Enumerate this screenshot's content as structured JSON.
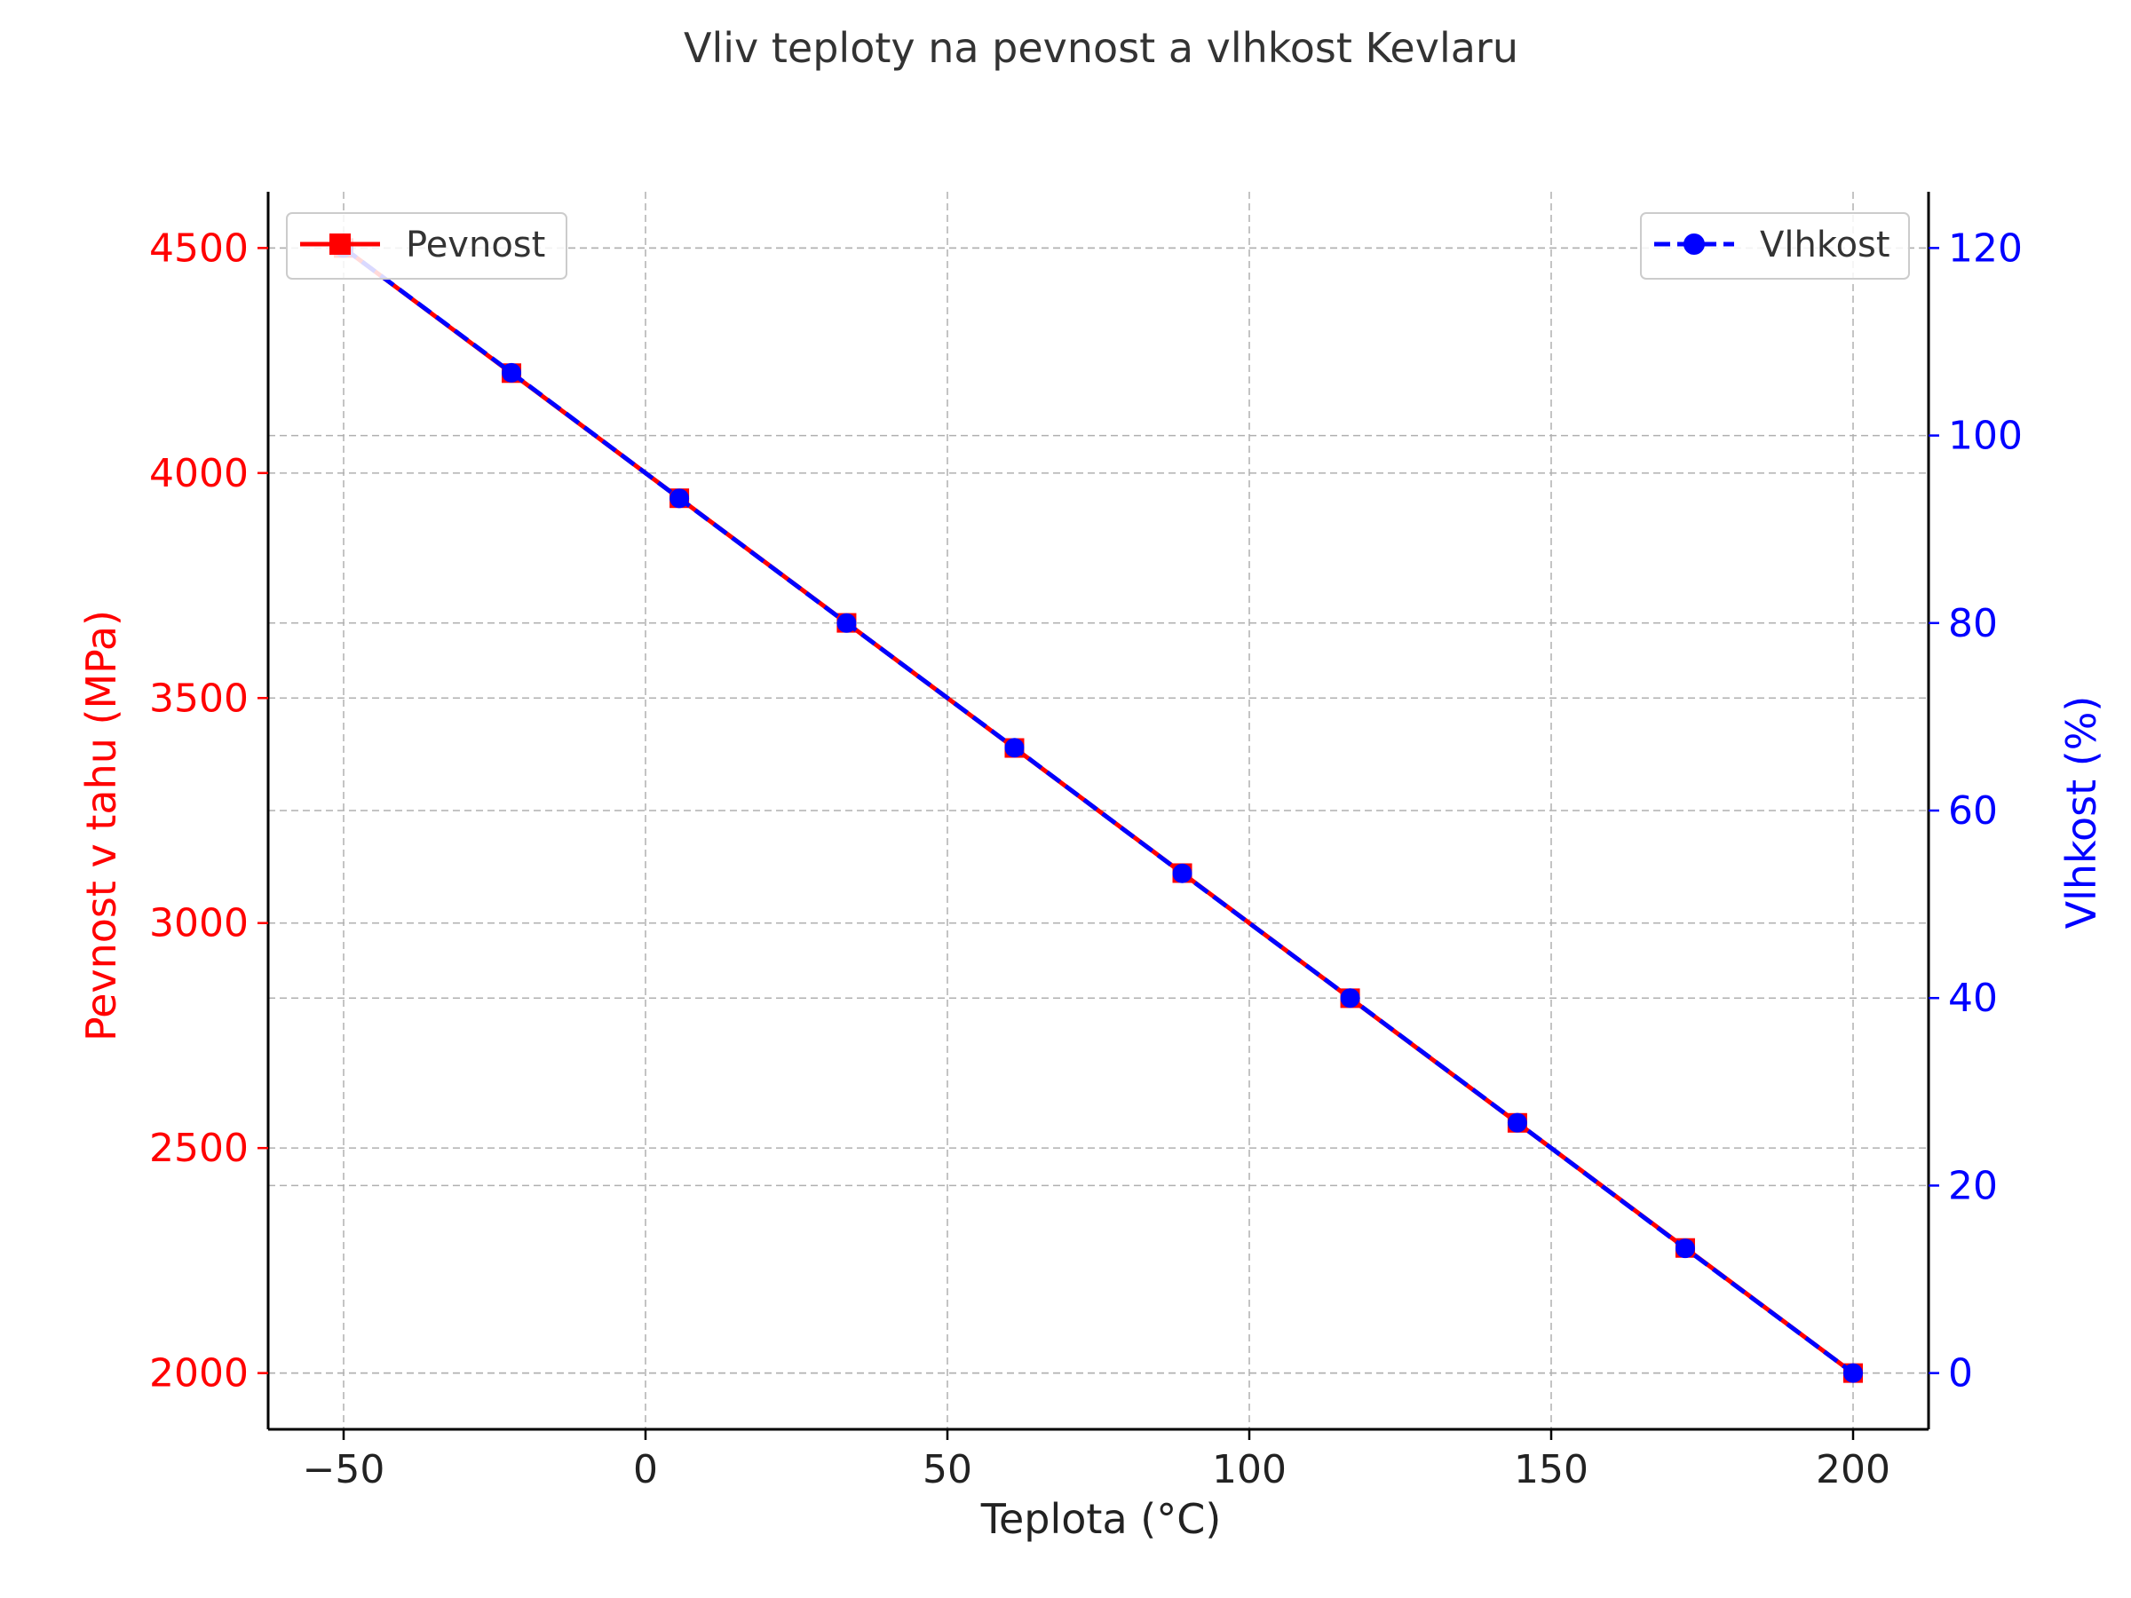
{
  "chart_data": {
    "type": "line",
    "title": "Vliv teploty na pevnost a vlhkost Kevlaru",
    "xlabel": "Teplota (°C)",
    "ylabel_left": "Pevnost v tahu (MPa)",
    "ylabel_right": "Vlhkost (%)",
    "xlim": [
      -62.5,
      212.5
    ],
    "ylim_left": [
      1875,
      4625
    ],
    "ylim_right": [
      -6,
      126
    ],
    "x_ticks": [
      -50,
      0,
      50,
      100,
      150,
      200
    ],
    "x_tick_labels": [
      "−50",
      "0",
      "50",
      "100",
      "150",
      "200"
    ],
    "y_left_ticks": [
      2000,
      2500,
      3000,
      3500,
      4000,
      4500
    ],
    "y_left_tick_labels": [
      "2000",
      "2500",
      "3000",
      "3500",
      "4000",
      "4500"
    ],
    "y_right_ticks": [
      0,
      20,
      40,
      60,
      80,
      100,
      120
    ],
    "y_right_tick_labels": [
      "0",
      "20",
      "40",
      "60",
      "80",
      "100",
      "120"
    ],
    "grid": true,
    "x": [
      -50,
      -22.2,
      5.6,
      33.3,
      61.1,
      88.9,
      116.7,
      144.4,
      172.2,
      200
    ],
    "series": [
      {
        "name": "Pevnost",
        "axis": "left",
        "color": "#ff0000",
        "marker": "square",
        "line_style": "solid",
        "values": [
          4500,
          4222,
          3944,
          3667,
          3389,
          3111,
          2833,
          2556,
          2278,
          2000
        ]
      },
      {
        "name": "Vlhkost",
        "axis": "right",
        "color": "#0000ff",
        "marker": "circle",
        "line_style": "dashed",
        "values": [
          120,
          106.7,
          93.3,
          80,
          66.7,
          53.3,
          40,
          26.7,
          13.3,
          0
        ]
      }
    ],
    "legend_left": {
      "label": "Pevnost",
      "placement": "top-left"
    },
    "legend_right": {
      "label": "Vlhkost",
      "placement": "top-right"
    },
    "colors": {
      "left_axis": "#ff0000",
      "right_axis": "#0000ff",
      "grid": "#b0b0b0"
    }
  }
}
